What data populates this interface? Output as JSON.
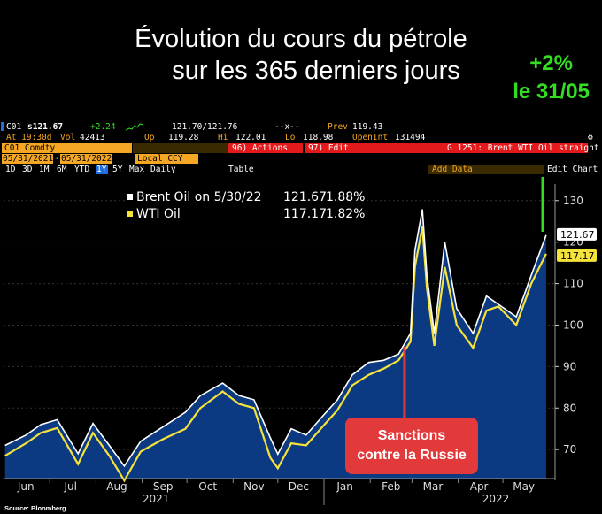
{
  "headline": {
    "line1": "Évolution du cours du pétrole",
    "line2": "sur les 365 derniers jours"
  },
  "callout": {
    "line1": "+2%",
    "line2": "le 31/05"
  },
  "terminal": {
    "ticker": "C01",
    "last": "s121.67",
    "change": "+2.24",
    "bid_ask": "121.70/121.76",
    "xx": "--x--",
    "prev_label": "Prev",
    "prev_value": "119.43",
    "time": "At 19:30d",
    "vol_label": "Vol",
    "vol_value": "42413",
    "op_label": "Op",
    "op_value": "119.28",
    "hi_label": "Hi",
    "hi_value": "122.01",
    "lo_label": "Lo",
    "lo_value": "118.98",
    "oi_label": "OpenInt",
    "oi_value": "131494",
    "security": "C01 Comdty",
    "actions": "96) Actions",
    "edit": "97) Edit",
    "chart_name": "G 1251: Brent WTI Oil straight",
    "date_from": "05/31/2021",
    "date_to": "05/31/2022",
    "currency": "Local CCY",
    "periods": [
      "1D",
      "3D",
      "1M",
      "6M",
      "YTD",
      "1Y",
      "5Y",
      "Max"
    ],
    "period_selected": "1Y",
    "interval": "Daily",
    "table": "Table",
    "add_data": "Add Data",
    "edit_chart": "Edit Chart"
  },
  "colors": {
    "brent": "#ffffff",
    "wti": "#f5e23a",
    "area": "#0c3a82",
    "accent_green": "#33dd22",
    "accent_red": "#e23a3a"
  },
  "legend": {
    "brent": {
      "name": "Brent Oil on 5/30/22",
      "value": "121.67",
      "pct": "1.88%"
    },
    "wti": {
      "name": "WTI Oil",
      "value": "117.17",
      "pct": "1.82%"
    }
  },
  "annotation": {
    "line1": "Sanctions",
    "line2": "contre la Russie"
  },
  "source": "Source: Bloomberg",
  "chart_data": {
    "type": "line",
    "x_axis": {
      "months": [
        "Jun",
        "Jul",
        "Aug",
        "Sep",
        "Oct",
        "Nov",
        "Dec",
        "Jan",
        "Feb",
        "Mar",
        "Apr",
        "May"
      ],
      "years": [
        "2021",
        "2022"
      ]
    },
    "y_axis": {
      "ticks": [
        70,
        80,
        90,
        100,
        110,
        120,
        130
      ],
      "ylim": [
        63,
        134
      ]
    },
    "series": [
      {
        "name": "Brent Oil",
        "color": "#ffffff",
        "x": [
          "2021-06-01",
          "2021-06-15",
          "2021-06-25",
          "2021-07-06",
          "2021-07-20",
          "2021-07-30",
          "2021-08-10",
          "2021-08-20",
          "2021-08-31",
          "2021-09-15",
          "2021-09-30",
          "2021-10-10",
          "2021-10-25",
          "2021-11-05",
          "2021-11-15",
          "2021-11-26",
          "2021-12-01",
          "2021-12-10",
          "2021-12-20",
          "2021-12-31",
          "2022-01-10",
          "2022-01-20",
          "2022-01-31",
          "2022-02-10",
          "2022-02-20",
          "2022-02-28",
          "2022-03-03",
          "2022-03-08",
          "2022-03-11",
          "2022-03-16",
          "2022-03-23",
          "2022-03-31",
          "2022-04-11",
          "2022-04-20",
          "2022-04-28",
          "2022-05-10",
          "2022-05-20",
          "2022-05-30"
        ],
        "values": [
          71.0,
          73.5,
          76.0,
          77.2,
          69.0,
          76.3,
          71.0,
          66.0,
          72.0,
          75.5,
          79.0,
          83.0,
          86.0,
          83.0,
          82.0,
          72.8,
          68.9,
          75.0,
          73.5,
          78.0,
          82.0,
          88.0,
          91.0,
          91.5,
          93.0,
          98.0,
          118.0,
          127.9,
          112.0,
          98.0,
          120.0,
          104.0,
          98.0,
          107.0,
          105.0,
          102.0,
          112.0,
          121.67
        ]
      },
      {
        "name": "WTI Oil",
        "color": "#f5e23a",
        "x": [
          "2021-06-01",
          "2021-06-15",
          "2021-06-25",
          "2021-07-06",
          "2021-07-20",
          "2021-07-30",
          "2021-08-10",
          "2021-08-20",
          "2021-08-31",
          "2021-09-15",
          "2021-09-30",
          "2021-10-10",
          "2021-10-25",
          "2021-11-05",
          "2021-11-15",
          "2021-11-26",
          "2021-12-01",
          "2021-12-10",
          "2021-12-20",
          "2021-12-31",
          "2022-01-10",
          "2022-01-20",
          "2022-01-31",
          "2022-02-10",
          "2022-02-20",
          "2022-02-28",
          "2022-03-03",
          "2022-03-08",
          "2022-03-11",
          "2022-03-16",
          "2022-03-23",
          "2022-03-31",
          "2022-04-11",
          "2022-04-20",
          "2022-04-28",
          "2022-05-10",
          "2022-05-20",
          "2022-05-30"
        ],
        "values": [
          68.5,
          71.5,
          74.0,
          75.2,
          66.5,
          74.0,
          68.5,
          62.5,
          69.5,
          72.5,
          75.0,
          80.0,
          84.0,
          81.0,
          80.0,
          68.0,
          65.5,
          71.5,
          71.0,
          75.5,
          79.5,
          85.5,
          88.0,
          89.5,
          91.5,
          96.0,
          114.0,
          123.7,
          109.0,
          95.0,
          114.0,
          100.0,
          94.5,
          103.5,
          104.5,
          100.0,
          110.0,
          117.17
        ]
      }
    ],
    "event_marker": {
      "x": "2022-02-24",
      "label": "Sanctions contre la Russie"
    },
    "price_tags": {
      "brent": "121.67",
      "wti": "117.17"
    }
  }
}
